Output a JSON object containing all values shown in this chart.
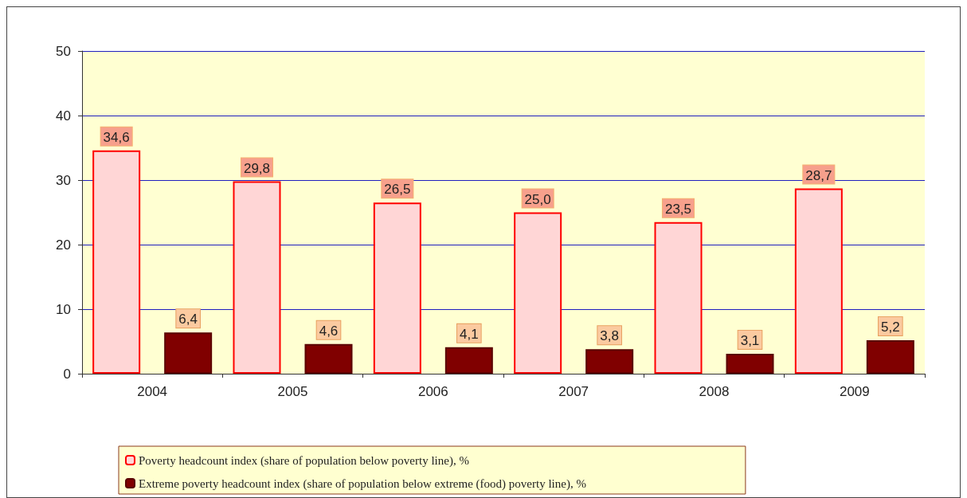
{
  "chart_data": {
    "type": "bar",
    "categories": [
      "2004",
      "2005",
      "2006",
      "2007",
      "2008",
      "2009"
    ],
    "series": [
      {
        "name": "Poverty headcount index (share of population below poverty line), %",
        "color": "#ffd6d6",
        "values": [
          34.6,
          29.8,
          26.5,
          25.0,
          23.5,
          28.7
        ],
        "value_labels": [
          "34,6",
          "29,8",
          "26,5",
          "25,0",
          "23,5",
          "28,7"
        ]
      },
      {
        "name": "Extreme poverty headcount index (share of population below extreme (food) poverty line), %",
        "color": "#800000",
        "values": [
          6.4,
          4.6,
          4.1,
          3.8,
          3.1,
          5.2
        ],
        "value_labels": [
          "6,4",
          "4,6",
          "4,1",
          "3,8",
          "3,1",
          "5,2"
        ]
      }
    ],
    "ylim": [
      0,
      50
    ],
    "yticks": [
      0,
      10,
      20,
      30,
      40,
      50
    ],
    "grid": "y",
    "legend": "bottom"
  }
}
